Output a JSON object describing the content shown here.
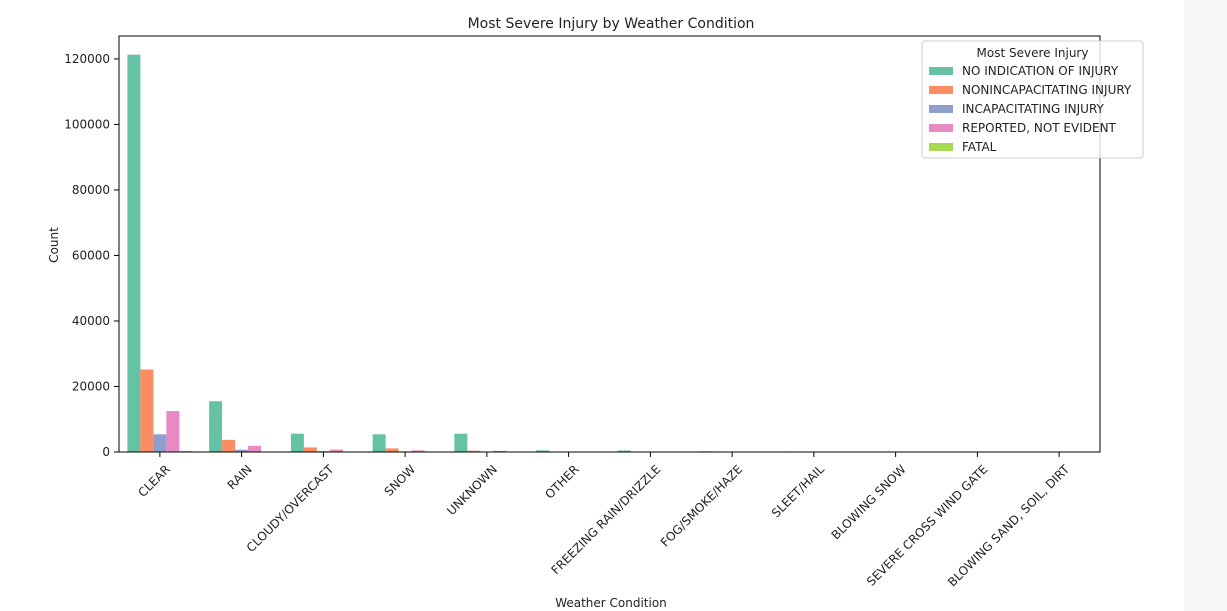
{
  "chart_data": {
    "type": "bar",
    "title": "Most Severe Injury by Weather Condition",
    "xlabel": "Weather Condition",
    "ylabel": "Count",
    "ylim": [
      0,
      127000
    ],
    "y_ticks": [
      0,
      20000,
      40000,
      60000,
      80000,
      100000,
      120000
    ],
    "grid": false,
    "legend": {
      "title": "Most Severe Injury",
      "placement": "top-right"
    },
    "categories": [
      "CLEAR",
      "RAIN",
      "CLOUDY/OVERCAST",
      "SNOW",
      "UNKNOWN",
      "OTHER",
      "FREEZING RAIN/DRIZZLE",
      "FOG/SMOKE/HAZE",
      "SLEET/HAIL",
      "BLOWING SNOW",
      "SEVERE CROSS WIND GATE",
      "BLOWING SAND, SOIL, DIRT"
    ],
    "series": [
      {
        "name": "NO INDICATION OF INJURY",
        "color": "#66c2a5",
        "values": [
          121300,
          15500,
          5600,
          5400,
          5600,
          500,
          450,
          220,
          160,
          90,
          60,
          10
        ]
      },
      {
        "name": "NONINCAPACITATING INJURY",
        "color": "#fc8d62",
        "values": [
          25200,
          3700,
          1400,
          1100,
          400,
          80,
          70,
          40,
          30,
          20,
          12,
          2
        ]
      },
      {
        "name": "INCAPACITATING INJURY",
        "color": "#8da0cb",
        "values": [
          5400,
          700,
          250,
          200,
          120,
          20,
          15,
          10,
          8,
          6,
          4,
          1
        ]
      },
      {
        "name": "REPORTED, NOT EVIDENT",
        "color": "#e78ac3",
        "values": [
          12500,
          1900,
          750,
          500,
          350,
          60,
          40,
          30,
          20,
          10,
          8,
          1
        ]
      },
      {
        "name": "FATAL",
        "color": "#a6d854",
        "values": [
          300,
          50,
          20,
          20,
          15,
          5,
          3,
          2,
          2,
          1,
          1,
          0
        ]
      }
    ]
  }
}
